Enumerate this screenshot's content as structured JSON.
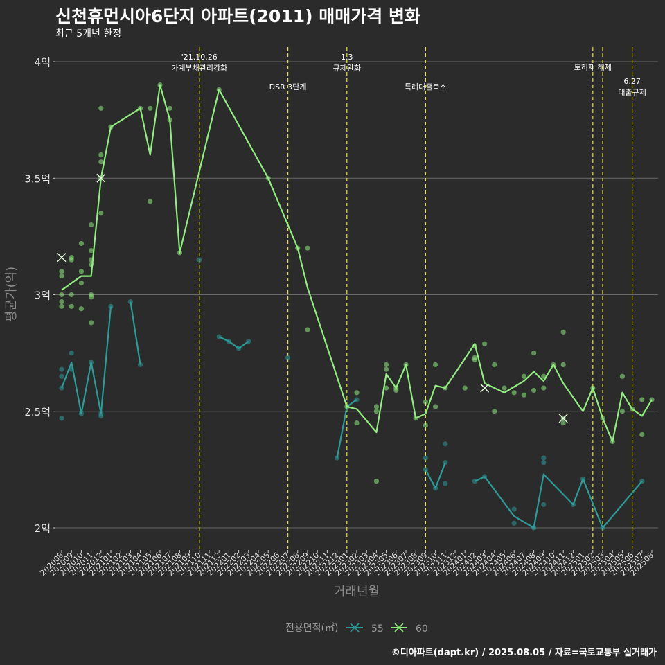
{
  "chart_data": {
    "type": "line",
    "title": "신천휴먼시아6단지 아파트(2011) 매매가격 변화",
    "subtitle": "최근 5개년 한정",
    "xlabel": "거래년월",
    "ylabel": "평균가(억)",
    "ylim": [
      1.9,
      4.05
    ],
    "yticks": [
      {
        "value": 2,
        "label": "2억"
      },
      {
        "value": 2.5,
        "label": "2.5억"
      },
      {
        "value": 3,
        "label": "3억"
      },
      {
        "value": 3.5,
        "label": "3.5억"
      },
      {
        "value": 4,
        "label": "4억"
      }
    ],
    "categories": [
      "202008",
      "202009",
      "202010",
      "202011",
      "202012",
      "202101",
      "202102",
      "202103",
      "202104",
      "202105",
      "202106",
      "202107",
      "202108",
      "202109",
      "202110",
      "202111",
      "202112",
      "202201",
      "202202",
      "202203",
      "202204",
      "202205",
      "202206",
      "202207",
      "202208",
      "202209",
      "202210",
      "202211",
      "202212",
      "202301",
      "202302",
      "202303",
      "202304",
      "202305",
      "202306",
      "202307",
      "202308",
      "202309",
      "202310",
      "202311",
      "202312",
      "202401",
      "202402",
      "202403",
      "202404",
      "202405",
      "202406",
      "202407",
      "202408",
      "202409",
      "202410",
      "202411",
      "202412",
      "202501",
      "202502",
      "202503",
      "202504",
      "202505",
      "202506",
      "202507",
      "202508"
    ],
    "legend_title": "전용면적(㎡)",
    "legend_position": "bottom",
    "grid": true,
    "series": [
      {
        "name": "55",
        "color": "#2a9d9a",
        "line_segments": [
          [
            [
              0,
              2.6
            ],
            [
              1,
              2.71
            ],
            [
              2,
              2.49
            ],
            [
              3,
              2.71
            ],
            [
              4,
              2.49
            ],
            [
              5,
              2.95
            ]
          ],
          [
            [
              7,
              2.97
            ],
            [
              8,
              2.7
            ]
          ],
          [
            [
              16,
              2.82
            ],
            [
              17,
              2.8
            ],
            [
              18,
              2.77
            ],
            [
              19,
              2.8
            ]
          ],
          [
            [
              28,
              2.3
            ],
            [
              29,
              2.52
            ],
            [
              30,
              2.55
            ]
          ],
          [
            [
              37,
              2.25
            ],
            [
              38,
              2.17
            ],
            [
              39,
              2.28
            ]
          ],
          [
            [
              42,
              2.2
            ],
            [
              43,
              2.22
            ],
            [
              46,
              2.05
            ],
            [
              48,
              2.0
            ],
            [
              49,
              2.23
            ],
            [
              52,
              2.1
            ],
            [
              53,
              2.21
            ],
            [
              55,
              2.0
            ],
            [
              59,
              2.2
            ]
          ]
        ],
        "points": [
          [
            0,
            2.6
          ],
          [
            0,
            2.65
          ],
          [
            0,
            2.68
          ],
          [
            0,
            2.47
          ],
          [
            1,
            2.75
          ],
          [
            1,
            2.68
          ],
          [
            2,
            2.49
          ],
          [
            3,
            2.71
          ],
          [
            4,
            2.48
          ],
          [
            4,
            2.49
          ],
          [
            5,
            2.95
          ],
          [
            7,
            2.97
          ],
          [
            8,
            2.7
          ],
          [
            14,
            3.15
          ],
          [
            16,
            2.82
          ],
          [
            17,
            2.8
          ],
          [
            18,
            2.77
          ],
          [
            19,
            2.8
          ],
          [
            23,
            2.73
          ],
          [
            28,
            2.3
          ],
          [
            30,
            2.55
          ],
          [
            37,
            2.3
          ],
          [
            37,
            2.25
          ],
          [
            38,
            2.17
          ],
          [
            39,
            2.36
          ],
          [
            39,
            2.28
          ],
          [
            39,
            2.19
          ],
          [
            42,
            2.2
          ],
          [
            43,
            2.22
          ],
          [
            46,
            2.08
          ],
          [
            46,
            2.02
          ],
          [
            48,
            2.0
          ],
          [
            49,
            2.3
          ],
          [
            49,
            2.28
          ],
          [
            49,
            2.1
          ],
          [
            52,
            2.1
          ],
          [
            53,
            2.21
          ],
          [
            55,
            2.0
          ],
          [
            59,
            2.2
          ]
        ],
        "cancelled": []
      },
      {
        "name": "60",
        "color": "#90ee7e",
        "line_segments": [
          [
            [
              0,
              3.02
            ],
            [
              1,
              3.05
            ],
            [
              2,
              3.08
            ],
            [
              3,
              3.08
            ],
            [
              4,
              3.5
            ],
            [
              5,
              3.72
            ],
            [
              8,
              3.8
            ],
            [
              9,
              3.6
            ],
            [
              10,
              3.9
            ],
            [
              11,
              3.75
            ],
            [
              12,
              3.18
            ],
            [
              16,
              3.88
            ],
            [
              21,
              3.5
            ],
            [
              24,
              3.2
            ],
            [
              25,
              3.03
            ],
            [
              29,
              2.52
            ],
            [
              30,
              2.51
            ],
            [
              32,
              2.41
            ],
            [
              33,
              2.66
            ],
            [
              34,
              2.6
            ],
            [
              35,
              2.7
            ],
            [
              36,
              2.47
            ],
            [
              37,
              2.49
            ],
            [
              38,
              2.61
            ],
            [
              39,
              2.6
            ],
            [
              42,
              2.79
            ],
            [
              43,
              2.62
            ],
            [
              45,
              2.58
            ],
            [
              47,
              2.63
            ],
            [
              48,
              2.67
            ],
            [
              49,
              2.63
            ],
            [
              50,
              2.7
            ],
            [
              51,
              2.62
            ],
            [
              53,
              2.5
            ],
            [
              54,
              2.6
            ],
            [
              55,
              2.47
            ],
            [
              56,
              2.37
            ],
            [
              57,
              2.58
            ],
            [
              58,
              2.51
            ],
            [
              59,
              2.48
            ],
            [
              60,
              2.55
            ]
          ]
        ],
        "points": [
          [
            0,
            3.1
          ],
          [
            0,
            3.08
          ],
          [
            0,
            3.0
          ],
          [
            0,
            2.97
          ],
          [
            0,
            2.95
          ],
          [
            1,
            3.16
          ],
          [
            1,
            3.15
          ],
          [
            1,
            3.0
          ],
          [
            1,
            2.95
          ],
          [
            2,
            3.22
          ],
          [
            2,
            3.1
          ],
          [
            2,
            3.05
          ],
          [
            2,
            2.94
          ],
          [
            3,
            3.3
          ],
          [
            3,
            3.19
          ],
          [
            3,
            3.15
          ],
          [
            3,
            3.13
          ],
          [
            3,
            3.0
          ],
          [
            3,
            2.99
          ],
          [
            3,
            2.88
          ],
          [
            4,
            3.8
          ],
          [
            4,
            3.6
          ],
          [
            4,
            3.57
          ],
          [
            4,
            3.5
          ],
          [
            4,
            3.35
          ],
          [
            5,
            3.72
          ],
          [
            8,
            3.8
          ],
          [
            9,
            3.8
          ],
          [
            9,
            3.4
          ],
          [
            10,
            3.9
          ],
          [
            11,
            3.8
          ],
          [
            11,
            3.75
          ],
          [
            12,
            3.18
          ],
          [
            16,
            3.88
          ],
          [
            21,
            3.5
          ],
          [
            24,
            3.2
          ],
          [
            25,
            3.2
          ],
          [
            25,
            2.85
          ],
          [
            29,
            2.52
          ],
          [
            30,
            2.58
          ],
          [
            30,
            2.45
          ],
          [
            32,
            2.52
          ],
          [
            32,
            2.5
          ],
          [
            32,
            2.2
          ],
          [
            33,
            2.7
          ],
          [
            33,
            2.68
          ],
          [
            33,
            2.6
          ],
          [
            34,
            2.6
          ],
          [
            34,
            2.59
          ],
          [
            35,
            2.7
          ],
          [
            36,
            2.47
          ],
          [
            37,
            2.54
          ],
          [
            37,
            2.44
          ],
          [
            38,
            2.7
          ],
          [
            38,
            2.52
          ],
          [
            39,
            2.6
          ],
          [
            41,
            2.6
          ],
          [
            42,
            2.78
          ],
          [
            42,
            2.73
          ],
          [
            42,
            2.72
          ],
          [
            43,
            2.79
          ],
          [
            44,
            2.7
          ],
          [
            44,
            2.5
          ],
          [
            45,
            2.6
          ],
          [
            46,
            2.58
          ],
          [
            47,
            2.65
          ],
          [
            47,
            2.57
          ],
          [
            48,
            2.75
          ],
          [
            48,
            2.59
          ],
          [
            49,
            2.65
          ],
          [
            49,
            2.6
          ],
          [
            50,
            2.7
          ],
          [
            51,
            2.84
          ],
          [
            51,
            2.7
          ],
          [
            51,
            2.47
          ],
          [
            51,
            2.45
          ],
          [
            54,
            2.6
          ],
          [
            55,
            2.47
          ],
          [
            56,
            2.37
          ],
          [
            57,
            2.65
          ],
          [
            57,
            2.5
          ],
          [
            58,
            2.51
          ],
          [
            59,
            2.55
          ],
          [
            59,
            2.4
          ],
          [
            60,
            2.55
          ]
        ],
        "cancelled": [
          [
            0,
            3.16
          ],
          [
            4,
            3.5
          ],
          [
            43,
            2.6
          ],
          [
            51,
            2.47
          ]
        ]
      }
    ],
    "events": [
      {
        "x": 14,
        "label": "'21.10.26\n가계부채관리강화",
        "row": 0
      },
      {
        "x": 23,
        "label": "DSR 3단계",
        "row": 2
      },
      {
        "x": 29,
        "label": "1.3\n규제완화",
        "row": 0
      },
      {
        "x": 37,
        "label": "특례대출축소",
        "row": 2
      },
      {
        "x": 54,
        "label": "토허제 해제",
        "row": 1
      },
      {
        "x": 55,
        "label": "",
        "row": 1
      },
      {
        "x": 58,
        "label": "6.27\n대출규제",
        "row": 2
      }
    ]
  },
  "credit": "©디아파트(dapt.kr) / 2025.08.05 / 자료=국토교통부 실거래가"
}
